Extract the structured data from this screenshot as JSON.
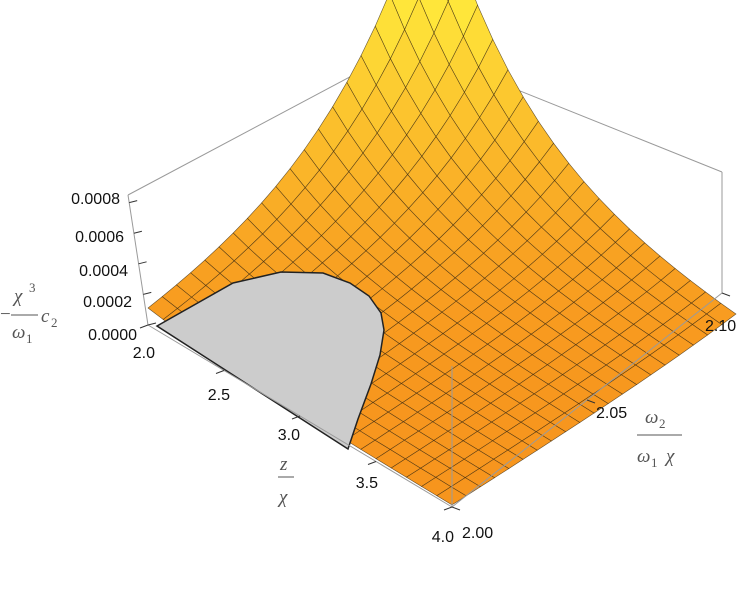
{
  "chart_data": {
    "type": "surface3d",
    "description_free": true,
    "x_axis": {
      "label": "z / χ",
      "range": [
        2.0,
        4.0
      ],
      "ticks": [
        "2.0",
        "2.5",
        "3.0",
        "3.5",
        "4.0"
      ]
    },
    "y_axis": {
      "label": "ω2 / (ω1 χ)",
      "range": [
        2.0,
        2.1
      ],
      "ticks": [
        "2.00",
        "2.05",
        "2.10"
      ]
    },
    "z_axis": {
      "label": "− χ³ / ω1 · c2",
      "range": [
        0.0,
        0.00085
      ],
      "ticks": [
        "0.0000",
        "0.0002",
        "0.0004",
        "0.0006",
        "0.0008"
      ]
    },
    "surface": {
      "grid_x": 20,
      "grid_y": 20,
      "peak_point": {
        "x": 2.0,
        "y": 2.1,
        "z": 0.00085
      },
      "decay_x": 0.6,
      "decay_y": 0.035,
      "excluded_region": "gray flat region near z/χ≈2.0–3.4, ω2/(ω1χ)≈2.00–2.05"
    },
    "colors": {
      "surface_high": "#ffe63a",
      "surface_low": "#f7941d",
      "mesh": "#3a2a10",
      "excluded": "#cccccc",
      "box": "#999999"
    }
  },
  "labels": {
    "z_axis_minus": "−",
    "z_axis_chi": "χ",
    "z_axis_sup": "3",
    "z_axis_omega": "ω",
    "z_axis_sub": "1",
    "z_axis_c": "c",
    "z_axis_c_sub": "2",
    "x_axis_num": "z",
    "x_axis_den": "χ",
    "y_axis_num_omega": "ω",
    "y_axis_num_sub": "2",
    "y_axis_den_omega": "ω",
    "y_axis_den_sub": "1",
    "y_axis_den_chi": "χ"
  }
}
